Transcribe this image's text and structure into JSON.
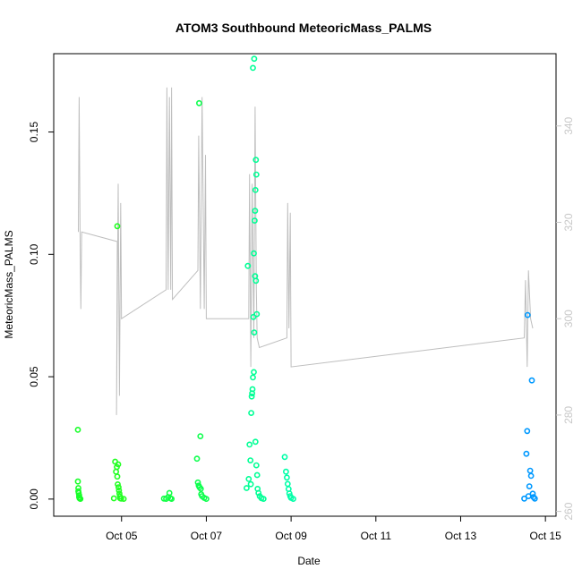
{
  "chart_data": {
    "type": "scatter",
    "title": "ATOM3 Southbound MeteoricMass_PALMS",
    "xlabel": "Date",
    "ylabel": "MeteoricMass_PALMS",
    "x_ticks": [
      "Oct 05",
      "Oct 07",
      "Oct 09",
      "Oct 11",
      "Oct 13",
      "Oct 15"
    ],
    "x_tick_days": [
      5,
      7,
      9,
      11,
      13,
      15
    ],
    "xlim": [
      3.4,
      15.25
    ],
    "ylim": [
      -0.007,
      0.182
    ],
    "y_ticks": [
      "0.00",
      "0.05",
      "0.10",
      "0.15"
    ],
    "y_tick_values": [
      0,
      0.05,
      0.1,
      0.15
    ],
    "secondary_axis": {
      "ticks": [
        "260",
        "280",
        "300",
        "320",
        "340"
      ],
      "tick_values": [
        260,
        280,
        300,
        320,
        340
      ],
      "range": [
        259,
        355
      ],
      "color": "#cccccc"
    },
    "colors": {
      "trace": "#bebebe",
      "axis": "#000000",
      "secondary_axis": "#c8c8c8"
    },
    "series": [
      {
        "color": "#19ff2a",
        "points": [
          [
            3.97,
            0.0283
          ],
          [
            3.97,
            0.0072
          ],
          [
            3.98,
            0.0045
          ],
          [
            3.98,
            0.0032
          ],
          [
            3.99,
            0.0025
          ],
          [
            4.0,
            0.0015
          ],
          [
            4.0,
            0.0008
          ],
          [
            4.01,
            0.0003
          ],
          [
            4.02,
            0.0002
          ],
          [
            4.03,
            0.0001
          ]
        ]
      },
      {
        "color": "#22ff22",
        "points": [
          [
            4.82,
            0.0003
          ],
          [
            4.85,
            0.0153
          ],
          [
            4.87,
            0.0112
          ],
          [
            4.89,
            0.0131
          ],
          [
            4.9,
            0.0092
          ],
          [
            4.9,
            0.1115
          ],
          [
            4.91,
            0.006
          ],
          [
            4.92,
            0.0142
          ],
          [
            4.93,
            0.0048
          ],
          [
            4.94,
            0.0035
          ],
          [
            4.95,
            0.0022
          ],
          [
            4.96,
            0.0011
          ],
          [
            4.97,
            0.0003
          ],
          [
            4.99,
            0.0002
          ],
          [
            5.05,
            0.0001
          ]
        ]
      },
      {
        "color": "#11ff44",
        "points": [
          [
            6.0,
            0.0002
          ],
          [
            6.05,
            0.0001
          ],
          [
            6.1,
            0.0008
          ],
          [
            6.13,
            0.0025
          ],
          [
            6.15,
            0.0004
          ],
          [
            6.18,
            0.0001
          ]
        ]
      },
      {
        "color": "#0dff4d",
        "points": [
          [
            6.78,
            0.0165
          ],
          [
            6.8,
            0.0068
          ],
          [
            6.82,
            0.0055
          ],
          [
            6.83,
            0.1618
          ],
          [
            6.84,
            0.0048
          ],
          [
            6.86,
            0.0257
          ],
          [
            6.87,
            0.0042
          ],
          [
            6.88,
            0.002
          ],
          [
            6.9,
            0.0012
          ],
          [
            6.95,
            0.0005
          ],
          [
            7.0,
            0.0001
          ]
        ]
      },
      {
        "color": "#00ff95",
        "points": [
          [
            7.95,
            0.0045
          ],
          [
            7.98,
            0.0953
          ],
          [
            8.0,
            0.0082
          ],
          [
            8.02,
            0.0223
          ],
          [
            8.04,
            0.0158
          ],
          [
            8.05,
            0.0061
          ],
          [
            8.06,
            0.0352
          ],
          [
            8.07,
            0.0419
          ],
          [
            8.08,
            0.0432
          ],
          [
            8.09,
            0.0449
          ],
          [
            8.1,
            0.0497
          ],
          [
            8.1,
            0.1762
          ],
          [
            8.11,
            0.0744
          ],
          [
            8.12,
            0.1004
          ],
          [
            8.12,
            0.0519
          ],
          [
            8.13,
            0.0681
          ],
          [
            8.13,
            0.1799
          ],
          [
            8.14,
            0.1138
          ],
          [
            8.15,
            0.1178
          ],
          [
            8.15,
            0.0911
          ],
          [
            8.16,
            0.1263
          ],
          [
            8.16,
            0.0234
          ],
          [
            8.17,
            0.1386
          ],
          [
            8.17,
            0.0892
          ],
          [
            8.18,
            0.1326
          ],
          [
            8.18,
            0.0138
          ],
          [
            8.19,
            0.0756
          ],
          [
            8.2,
            0.0098
          ],
          [
            8.21,
            0.0042
          ],
          [
            8.23,
            0.0025
          ],
          [
            8.26,
            0.0012
          ],
          [
            8.3,
            0.0004
          ],
          [
            8.35,
            0.0001
          ]
        ]
      },
      {
        "color": "#00ffa8",
        "points": [
          [
            8.85,
            0.0172
          ],
          [
            8.88,
            0.0112
          ],
          [
            8.9,
            0.0088
          ],
          [
            8.92,
            0.0062
          ],
          [
            8.94,
            0.0041
          ],
          [
            8.96,
            0.0023
          ],
          [
            8.98,
            0.0012
          ],
          [
            9.0,
            0.0005
          ],
          [
            9.05,
            0.0001
          ]
        ]
      },
      {
        "color": "#0099ff",
        "points": [
          [
            14.5,
            0.0002
          ],
          [
            14.55,
            0.0185
          ],
          [
            14.57,
            0.0278
          ],
          [
            14.58,
            0.0752
          ],
          [
            14.6,
            0.0012
          ],
          [
            14.62,
            0.0052
          ],
          [
            14.64,
            0.0116
          ],
          [
            14.66,
            0.0095
          ],
          [
            14.68,
            0.0485
          ],
          [
            14.7,
            0.0022
          ],
          [
            14.72,
            0.0008
          ],
          [
            14.75,
            0.0002
          ]
        ]
      }
    ],
    "secondary_trace": [
      [
        3.98,
        318
      ],
      [
        4.0,
        346
      ],
      [
        4.02,
        318
      ],
      [
        4.04,
        302
      ],
      [
        4.06,
        318
      ],
      [
        4.9,
        316
      ],
      [
        4.88,
        280
      ],
      [
        4.92,
        328
      ],
      [
        4.95,
        284
      ],
      [
        4.98,
        324
      ],
      [
        5.0,
        300
      ],
      [
        6.05,
        306
      ],
      [
        6.07,
        348
      ],
      [
        6.1,
        306
      ],
      [
        6.13,
        346
      ],
      [
        6.16,
        306
      ],
      [
        6.18,
        348
      ],
      [
        6.2,
        304
      ],
      [
        6.8,
        310
      ],
      [
        6.82,
        338
      ],
      [
        6.86,
        302
      ],
      [
        6.9,
        346
      ],
      [
        6.95,
        302
      ],
      [
        6.98,
        334
      ],
      [
        7.0,
        300
      ],
      [
        8.0,
        300
      ],
      [
        8.02,
        330
      ],
      [
        8.05,
        290
      ],
      [
        8.08,
        328
      ],
      [
        8.12,
        296
      ],
      [
        8.15,
        344
      ],
      [
        8.18,
        306
      ],
      [
        8.2,
        296
      ],
      [
        8.25,
        294
      ],
      [
        8.9,
        296
      ],
      [
        8.92,
        324
      ],
      [
        8.95,
        298
      ],
      [
        8.98,
        322
      ],
      [
        9.0,
        290
      ],
      [
        14.5,
        296
      ],
      [
        14.53,
        308
      ],
      [
        14.57,
        290
      ],
      [
        14.6,
        310
      ],
      [
        14.65,
        300
      ],
      [
        14.7,
        298
      ]
    ]
  }
}
